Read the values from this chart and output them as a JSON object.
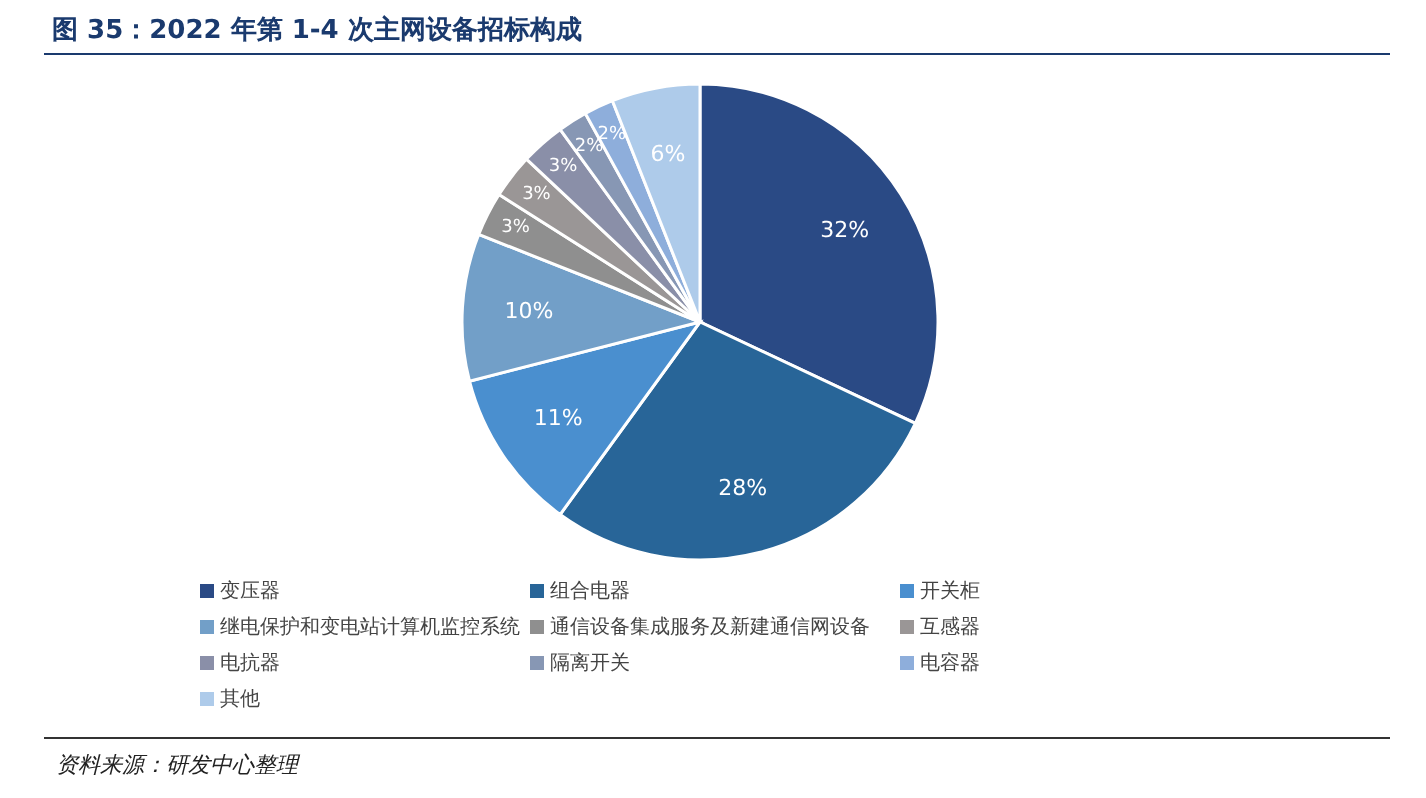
{
  "chart_data": {
    "type": "pie",
    "title": "图 35：2022 年第 1-4 次主网设备招标构成",
    "categories": [
      "变压器",
      "组合电器",
      "开关柜",
      "继电保护和变电站计算机监控系统",
      "通信设备集成服务及新建通信网设备",
      "互感器",
      "电抗器",
      "隔离开关",
      "电容器",
      "其他"
    ],
    "values": [
      32,
      28,
      11,
      10,
      3,
      3,
      3,
      2,
      2,
      6
    ],
    "value_labels": [
      "32%",
      "28%",
      "11%",
      "10%",
      "3%",
      "3%",
      "3%",
      "2%",
      "2%",
      "6%"
    ],
    "colors": [
      "#2a4a85",
      "#286598",
      "#4a8fcf",
      "#729fc8",
      "#8f8f8f",
      "#9a9696",
      "#8a8fa8",
      "#8797b4",
      "#8eaedb",
      "#aecbea"
    ],
    "legend": "bottom",
    "annotations": [
      "资料来源：研发中心整理"
    ]
  }
}
